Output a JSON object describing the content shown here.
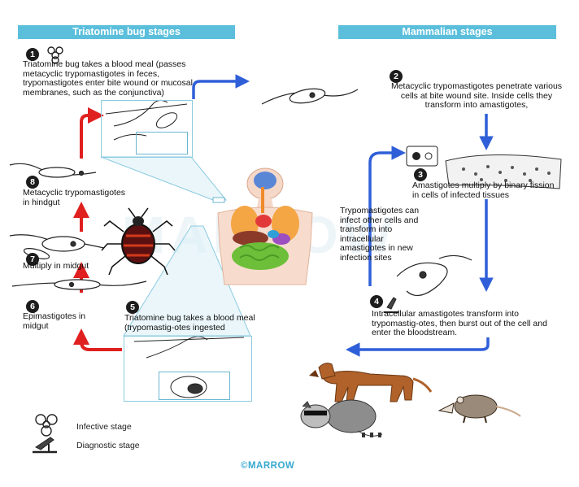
{
  "headers": {
    "left": "Triatomine bug stages",
    "right": "Mammalian stages"
  },
  "steps": [
    {
      "num": "1",
      "text": "Triatomine bug takes a blood meal (passes metacyclic trypomastigotes in feces, trypomastigotes enter bite wound or mucosal membranes, such as the conjunctiva)"
    },
    {
      "num": "2",
      "text": "Metacyclic trypomastigotes penetrate various cells at bite wound site. Inside cells they transform into amastigotes,"
    },
    {
      "num": "3",
      "text": "Amastigotes multiply by binary fission in cells of infected tissues"
    },
    {
      "num": "4",
      "text": "Intracellular amastigotes transform into trypomastig-otes, then burst out of the cell and enter the bloodstream."
    },
    {
      "num": "5",
      "text": "Triatomine bug takes a blood meal (trypomastig-otes ingested"
    },
    {
      "num": "6",
      "text": "Epimastigotes in midgut"
    },
    {
      "num": "7",
      "text": "Multiply in midgut"
    },
    {
      "num": "8",
      "text": "Metacyclic trypomastigotes in hindgut"
    }
  ],
  "side_note": "Trypomastigotes can infect other cells and transform into intracellular amastigotes in new infection sites",
  "legend": {
    "infective": "Infective stage",
    "diagnostic": "Diagnostic stage"
  },
  "footer": "©MARROW",
  "watermark": "MARROW",
  "colors": {
    "header_bg": "#5bbfdc",
    "blue_arrow": "#2f5fd8",
    "red_arrow": "#e01f1f",
    "panel_border": "#8ccbe0"
  },
  "icons": [
    "biohazard-icon",
    "microscope-icon",
    "parasite-icon",
    "triatomine-bug-icon",
    "human-body-icon",
    "dog-icon",
    "raccoon-icon",
    "opossum-icon"
  ]
}
